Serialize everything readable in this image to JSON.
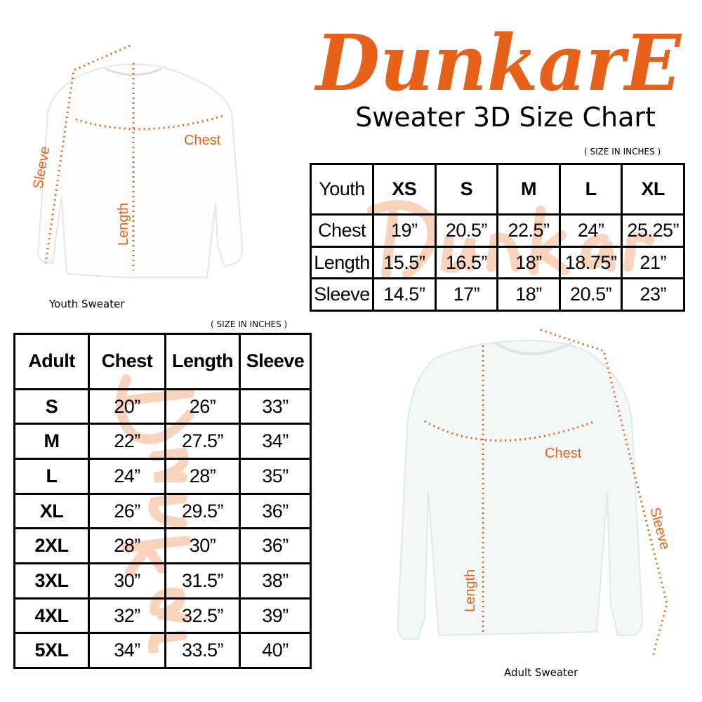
{
  "brand": {
    "logo": "DunkarE",
    "title": "Sweater 3D Size Chart"
  },
  "colors": {
    "accent": "#e8611a",
    "watermark": "#f8c9ac"
  },
  "youth": {
    "caption": "Youth Sweater",
    "note": "( SIZE IN INCHES )",
    "labels": {
      "chest": "Chest",
      "length": "Length",
      "sleeve": "Sleeve"
    },
    "header": [
      "Youth",
      "XS",
      "S",
      "M",
      "L",
      "XL"
    ],
    "rows": [
      [
        "Chest",
        "19”",
        "20.5”",
        "22.5”",
        "24”",
        "25.25”"
      ],
      [
        "Length",
        "15.5”",
        "16.5”",
        "18”",
        "18.75”",
        "21”"
      ],
      [
        "Sleeve",
        "14.5”",
        "17”",
        "18”",
        "20.5”",
        "23”"
      ]
    ]
  },
  "adult": {
    "caption": "Adult Sweater",
    "note": "( SIZE IN INCHES )",
    "labels": {
      "chest": "Chest",
      "length": "Length",
      "sleeve": "Sleeve"
    },
    "header": [
      "Adult",
      "Chest",
      "Length",
      "Sleeve"
    ],
    "rows": [
      [
        "S",
        "20”",
        "26”",
        "33”"
      ],
      [
        "M",
        "22”",
        "27.5”",
        "34”"
      ],
      [
        "L",
        "24”",
        "28”",
        "35”"
      ],
      [
        "XL",
        "26”",
        "29.5”",
        "36”"
      ],
      [
        "2XL",
        "28”",
        "30”",
        "36”"
      ],
      [
        "3XL",
        "30”",
        "31.5”",
        "38”"
      ],
      [
        "4XL",
        "32”",
        "32.5”",
        "39”"
      ],
      [
        "5XL",
        "34”",
        "33.5”",
        "40”"
      ]
    ]
  }
}
